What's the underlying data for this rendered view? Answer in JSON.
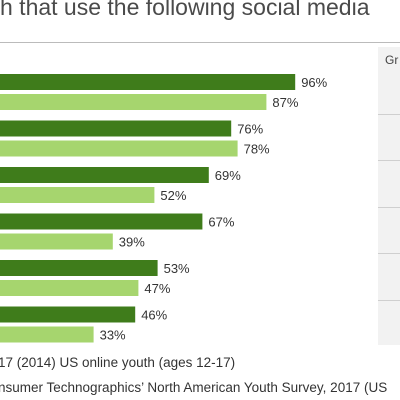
{
  "title": "h that use the following social media",
  "growth_header": "Gr",
  "footnote": "17 (2014) US online youth (ages 12-17)",
  "source": "nsumer Technographics’ North American Youth Survey, 2017 (US",
  "colors": {
    "dark_series": "#3f7c1b",
    "light_series": "#a6d56e",
    "panel": "#f2f2f2"
  },
  "chart_data": {
    "type": "bar",
    "orientation": "horizontal",
    "title": "",
    "xlim": [
      0,
      100
    ],
    "value_suffix": "%",
    "series": [
      {
        "values": [
          96,
          76,
          69,
          67,
          53,
          46
        ]
      },
      {
        "values": [
          87,
          78,
          52,
          39,
          47,
          33
        ]
      }
    ]
  }
}
